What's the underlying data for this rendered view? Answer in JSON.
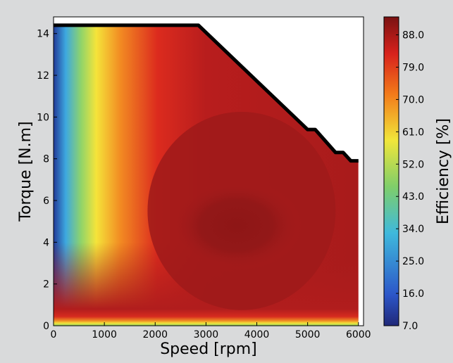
{
  "chart_data": {
    "type": "heatmap",
    "title": "",
    "xlabel": "Speed [rpm]",
    "ylabel": "Torque [N.m]",
    "xlim": [
      0,
      6100
    ],
    "ylim": [
      0,
      14.8
    ],
    "x_ticks": [
      0,
      1000,
      2000,
      3000,
      4000,
      5000,
      6000
    ],
    "y_ticks": [
      0,
      2,
      4,
      6,
      8,
      10,
      12,
      14
    ],
    "x_tick_labels": [
      "0",
      "1000",
      "2000",
      "3000",
      "4000",
      "5000",
      "6000"
    ],
    "y_tick_labels": [
      "0",
      "2",
      "4",
      "6",
      "8",
      "10",
      "12",
      "14"
    ],
    "colorbar": {
      "label": "Efficiency [%]",
      "min": 7.0,
      "max": 93.0,
      "ticks": [
        7.0,
        16.0,
        25.0,
        34.0,
        43.0,
        52.0,
        61.0,
        70.0,
        79.0,
        88.0
      ],
      "tick_labels": [
        "7.0",
        "16.0",
        "25.0",
        "34.0",
        "43.0",
        "52.0",
        "61.0",
        "70.0",
        "79.0",
        "88.0"
      ]
    },
    "max_torque_envelope": [
      [
        0,
        14.4
      ],
      [
        2850,
        14.4
      ],
      [
        5000,
        9.4
      ],
      [
        5150,
        9.4
      ],
      [
        5550,
        8.3
      ],
      [
        5700,
        8.3
      ],
      [
        5850,
        7.9
      ],
      [
        6000,
        7.9
      ]
    ],
    "efficiency_regions": [
      {
        "level": 90,
        "description_speed_range": [
          2000,
          4500
        ],
        "torque_range": [
          3,
          7
        ]
      },
      {
        "level": 88,
        "description_speed_range": [
          1500,
          5500
        ],
        "torque_range": [
          1.5,
          12
        ]
      },
      {
        "level": 60,
        "description_speed_range": [
          200,
          600
        ],
        "torque_range": [
          0,
          14.4
        ]
      },
      {
        "level": 20,
        "description_speed_range": [
          0,
          150
        ],
        "torque_range": [
          5,
          14.4
        ]
      }
    ],
    "grid": false
  }
}
